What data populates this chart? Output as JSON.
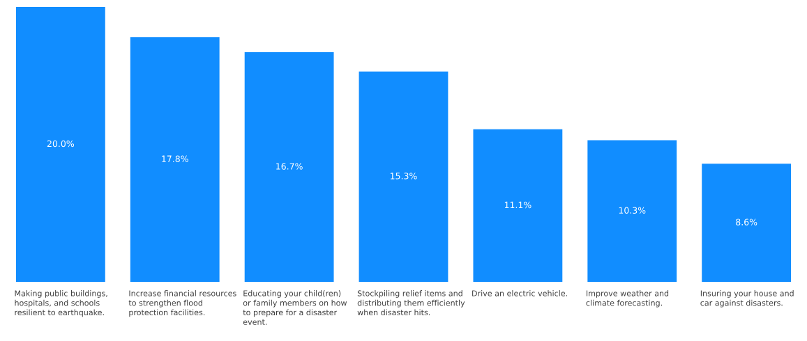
{
  "chart_data": {
    "type": "bar",
    "categories": [
      "Making public buildings,\nhospitals, and schools\nresilient to earthquake.",
      "Increase financial resources\nto strengthen flood\nprotection facilities.",
      "Educating your child(ren)\nor family members on how\nto prepare for a disaster\nevent.",
      "Stockpiling relief items and\ndistributing them efficiently\nwhen disaster hits.",
      "Drive an electric vehicle.",
      "Improve weather and\nclimate forecasting.",
      "Insuring your house and\ncar against disasters."
    ],
    "values": [
      20.0,
      17.8,
      16.7,
      15.3,
      11.1,
      10.3,
      8.6
    ],
    "value_labels": [
      "20.0%",
      "17.8%",
      "16.7%",
      "15.3%",
      "11.1%",
      "10.3%",
      "8.6%"
    ],
    "color": "#118dff"
  }
}
